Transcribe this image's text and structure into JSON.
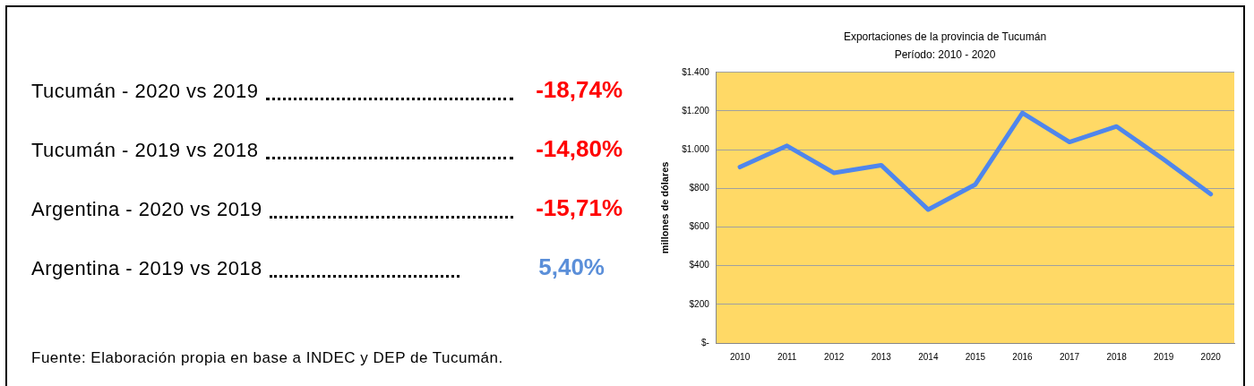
{
  "chart_data": [
    {
      "type": "other",
      "categories": [
        "Tucumán - 2020 vs 2019",
        "Tucumán - 2019 vs 2018",
        "Argentina - 2020 vs 2019",
        "Argentina - 2019 vs 2018"
      ],
      "value_labels": [
        "-18,74%",
        "-14,80%",
        "-15,71%",
        "5,40%"
      ],
      "colors": [
        "#ff0000",
        "#ff0000",
        "#ff0000",
        "#5b8fd9"
      ],
      "annotations": [
        "Fuente: Elaboración propia en base a INDEC y DEP de Tucumán."
      ]
    },
    {
      "type": "line",
      "title": "Exportaciones de la provincia de Tucumán",
      "subtitle": "Período: 2010 - 2020",
      "ylabel": "millones de dólares",
      "categories": [
        "2010",
        "2011",
        "2012",
        "2013",
        "2014",
        "2015",
        "2016",
        "2017",
        "2018",
        "2019",
        "2020"
      ],
      "series": [
        {
          "color": "#4f86ec",
          "values": [
            910,
            1020,
            880,
            920,
            690,
            820,
            1190,
            1040,
            1120,
            950,
            770
          ]
        }
      ],
      "ylim": [
        0,
        1400
      ],
      "yticks": [
        {
          "value": 0,
          "label": "$-"
        },
        {
          "value": 200,
          "label": "$200"
        },
        {
          "value": 400,
          "label": "$400"
        },
        {
          "value": 600,
          "label": "$600"
        },
        {
          "value": 800,
          "label": "$800"
        },
        {
          "value": 1000,
          "label": "$1.000"
        },
        {
          "value": 1200,
          "label": "$1.200"
        },
        {
          "value": 1400,
          "label": "$1.400"
        }
      ],
      "grid": "y",
      "legend": false,
      "marker": "none",
      "line_style": "solid"
    }
  ]
}
